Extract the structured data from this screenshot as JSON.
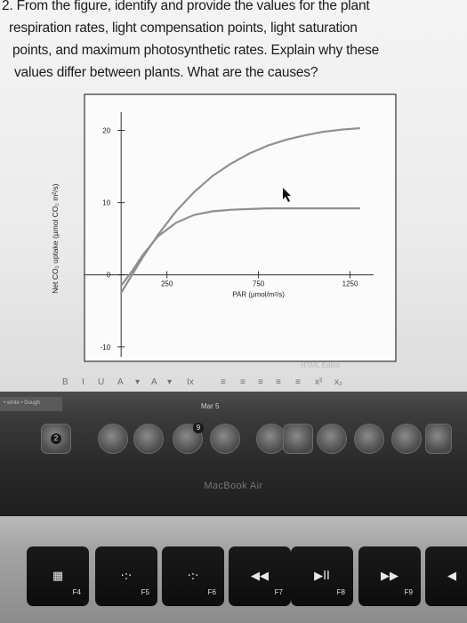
{
  "question": {
    "lines": [
      "2. From the figure, identify and provide the values for the plant",
      "respiration rates, light compensation points, light saturation",
      "points, and maximum photosynthetic rates. Explain why these",
      "values differ between plants. What are the causes?"
    ]
  },
  "chart_data": {
    "type": "line",
    "xlabel": "PAR (µmol/m²/s)",
    "ylabel": "Net CO₂ uptake (µmol CO₂ m²/s)",
    "xlim": [
      -200,
      1500
    ],
    "ylim": [
      -12,
      25
    ],
    "x_ticks": [
      250,
      750,
      1250
    ],
    "y_ticks": [
      -10,
      0,
      10,
      20
    ],
    "series": [
      {
        "x": [
          0,
          60,
          120,
          200,
          300,
          400,
          500,
          600,
          700,
          800,
          900,
          1000,
          1100,
          1200,
          1300
        ],
        "y": [
          -2.5,
          0,
          2.5,
          5.5,
          8.8,
          11.5,
          13.7,
          15.4,
          16.8,
          17.9,
          18.7,
          19.3,
          19.8,
          20.1,
          20.3
        ],
        "color": "#8f8f8f"
      },
      {
        "x": [
          0,
          60,
          120,
          200,
          300,
          400,
          500,
          600,
          700,
          800,
          900,
          1000,
          1100,
          1200,
          1300
        ],
        "y": [
          -1.5,
          0.5,
          2.8,
          5.3,
          7.2,
          8.3,
          8.8,
          9.0,
          9.1,
          9.2,
          9.2,
          9.2,
          9.2,
          9.2,
          9.2
        ],
        "color": "#8f8f8f"
      }
    ]
  },
  "editor": {
    "label": "HTML Editor",
    "toolbar": [
      "B",
      "I",
      "U",
      "A",
      "▾",
      "A",
      "▾",
      "Ix",
      "≡",
      "≡",
      "≡",
      "≡",
      "≡",
      "x²",
      "x₂"
    ]
  },
  "dock": {
    "date": "Mar 5",
    "strip_left": "• white • Dough",
    "badges": [
      "2",
      "9"
    ]
  },
  "laptop": {
    "label": "MacBook Air"
  },
  "keyboard": {
    "keys": [
      {
        "icon": "launchpad-icon",
        "glyph": "▦",
        "fn": "F4"
      },
      {
        "icon": "brightness-down-icon",
        "glyph": "·:·",
        "fn": "F5"
      },
      {
        "icon": "brightness-up-icon",
        "glyph": "·:·",
        "fn": "F6"
      },
      {
        "icon": "rewind-icon",
        "glyph": "◀◀",
        "fn": "F7"
      },
      {
        "icon": "play-pause-icon",
        "glyph": "▶II",
        "fn": "F8"
      },
      {
        "icon": "fast-forward-icon",
        "glyph": "▶▶",
        "fn": "F9"
      },
      {
        "icon": "mute-icon",
        "glyph": "◀",
        "fn": ""
      }
    ]
  }
}
